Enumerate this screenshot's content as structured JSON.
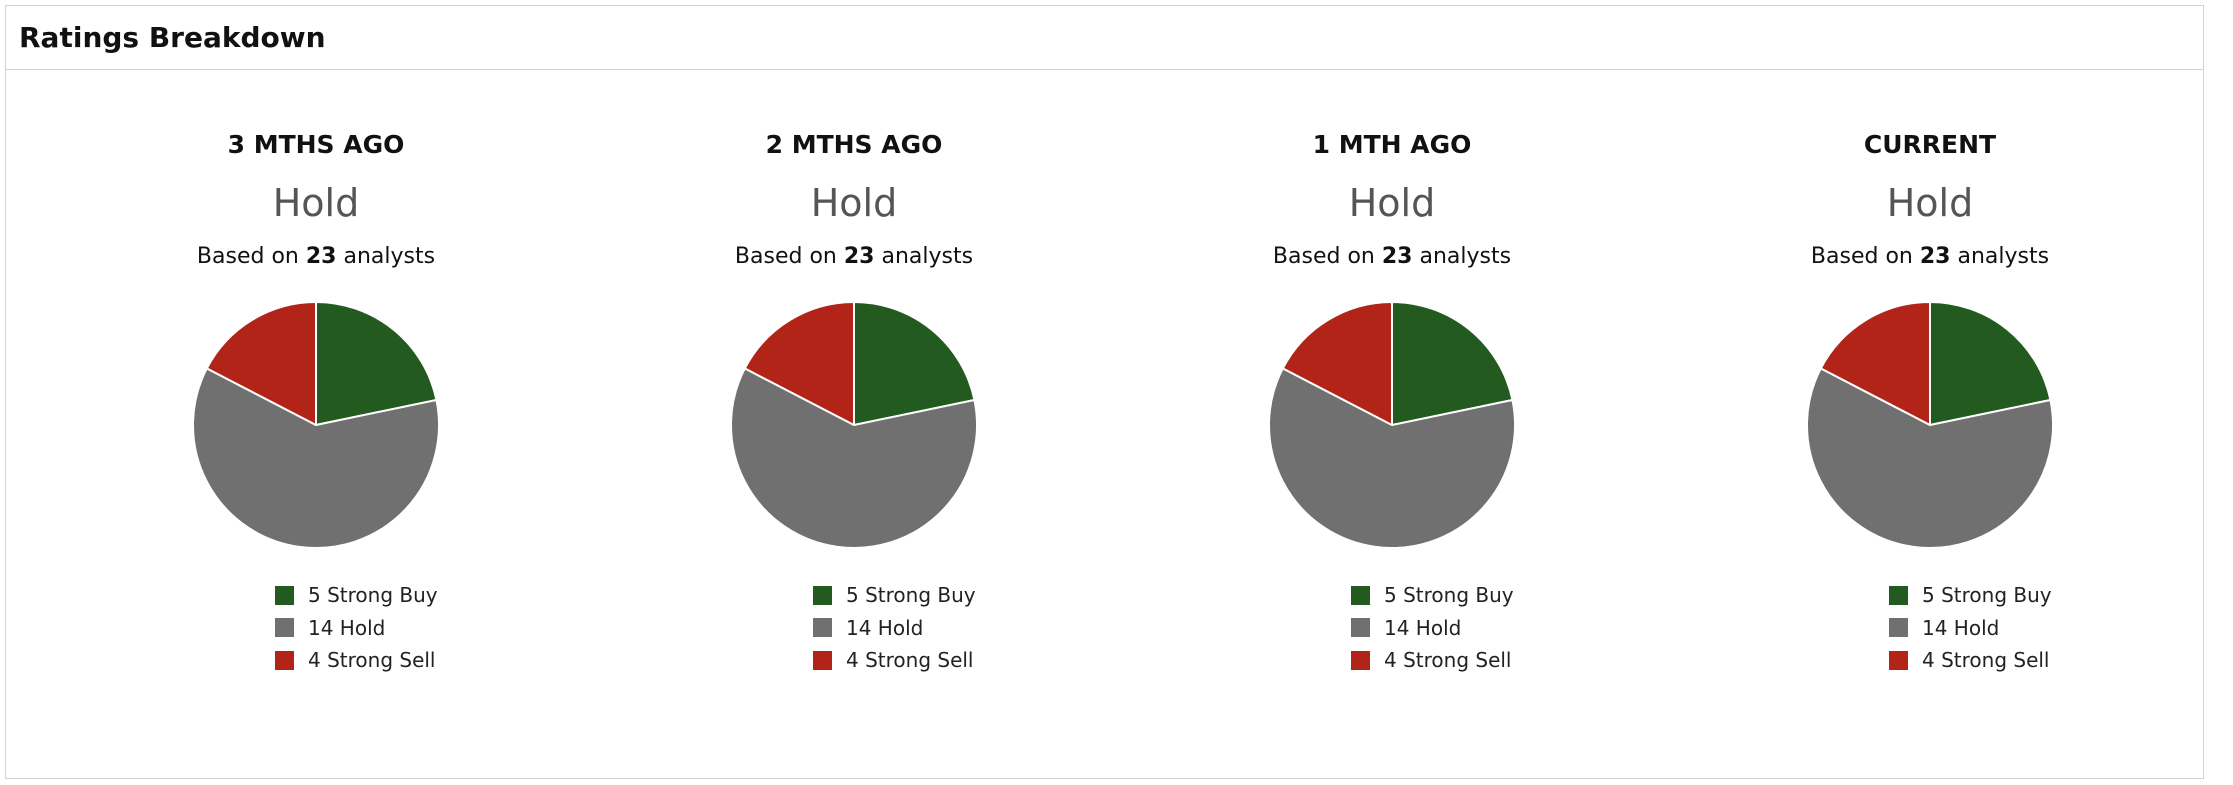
{
  "panel": {
    "title": "Ratings Breakdown"
  },
  "based_prefix": "Based on",
  "based_suffix": "analysts",
  "colors": {
    "strong_buy": "#235a1f",
    "hold": "#707070",
    "strong_sell": "#b22318"
  },
  "chart_data": [
    {
      "type": "pie",
      "title": "3 MTHS AGO",
      "consensus": "Hold",
      "analyst_count": "23",
      "slices": [
        {
          "label": "5 Strong Buy",
          "name": "Strong Buy",
          "value": 5,
          "color": "#235a1f"
        },
        {
          "label": "14 Hold",
          "name": "Hold",
          "value": 14,
          "color": "#707070"
        },
        {
          "label": "4 Strong Sell",
          "name": "Strong Sell",
          "value": 4,
          "color": "#b22318"
        }
      ]
    },
    {
      "type": "pie",
      "title": "2 MTHS AGO",
      "consensus": "Hold",
      "analyst_count": "23",
      "slices": [
        {
          "label": "5 Strong Buy",
          "name": "Strong Buy",
          "value": 5,
          "color": "#235a1f"
        },
        {
          "label": "14 Hold",
          "name": "Hold",
          "value": 14,
          "color": "#707070"
        },
        {
          "label": "4 Strong Sell",
          "name": "Strong Sell",
          "value": 4,
          "color": "#b22318"
        }
      ]
    },
    {
      "type": "pie",
      "title": "1 MTH AGO",
      "consensus": "Hold",
      "analyst_count": "23",
      "slices": [
        {
          "label": "5 Strong Buy",
          "name": "Strong Buy",
          "value": 5,
          "color": "#235a1f"
        },
        {
          "label": "14 Hold",
          "name": "Hold",
          "value": 14,
          "color": "#707070"
        },
        {
          "label": "4 Strong Sell",
          "name": "Strong Sell",
          "value": 4,
          "color": "#b22318"
        }
      ]
    },
    {
      "type": "pie",
      "title": "CURRENT",
      "consensus": "Hold",
      "analyst_count": "23",
      "slices": [
        {
          "label": "5 Strong Buy",
          "name": "Strong Buy",
          "value": 5,
          "color": "#235a1f"
        },
        {
          "label": "14 Hold",
          "name": "Hold",
          "value": 14,
          "color": "#707070"
        },
        {
          "label": "4 Strong Sell",
          "name": "Strong Sell",
          "value": 4,
          "color": "#b22318"
        }
      ]
    }
  ]
}
